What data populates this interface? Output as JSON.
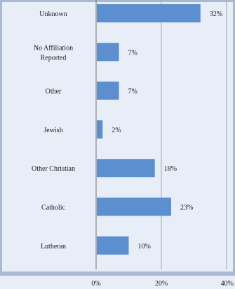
{
  "chart_data": {
    "type": "bar",
    "orientation": "horizontal",
    "categories": [
      "Unknown",
      "No Affiliation Reported",
      "Other",
      "Jewish",
      "Other Christian",
      "Catholic",
      "Lutheran"
    ],
    "category_lines": [
      [
        "Unknown"
      ],
      [
        "No Affiliation",
        "Reported"
      ],
      [
        "Other"
      ],
      [
        "Jewish"
      ],
      [
        "Other Christian"
      ],
      [
        "Catholic"
      ],
      [
        "Lutheran"
      ]
    ],
    "values": [
      32,
      7,
      7,
      2,
      18,
      23,
      10
    ],
    "value_labels": [
      "32%",
      "7%",
      "7%",
      "2%",
      "18%",
      "23%",
      "10%"
    ],
    "x_ticks": [
      0,
      20,
      40
    ],
    "x_tick_labels": [
      "0%",
      "20%",
      "40%"
    ],
    "xlim": [
      0,
      40
    ],
    "grid": true,
    "title": "",
    "xlabel": "",
    "ylabel": "",
    "colors": {
      "background": "#e8eef8",
      "frame": "#a9b9d3",
      "bar": "#5b8fd0",
      "grid": "#9fa6b0",
      "axis": "#707070"
    }
  }
}
